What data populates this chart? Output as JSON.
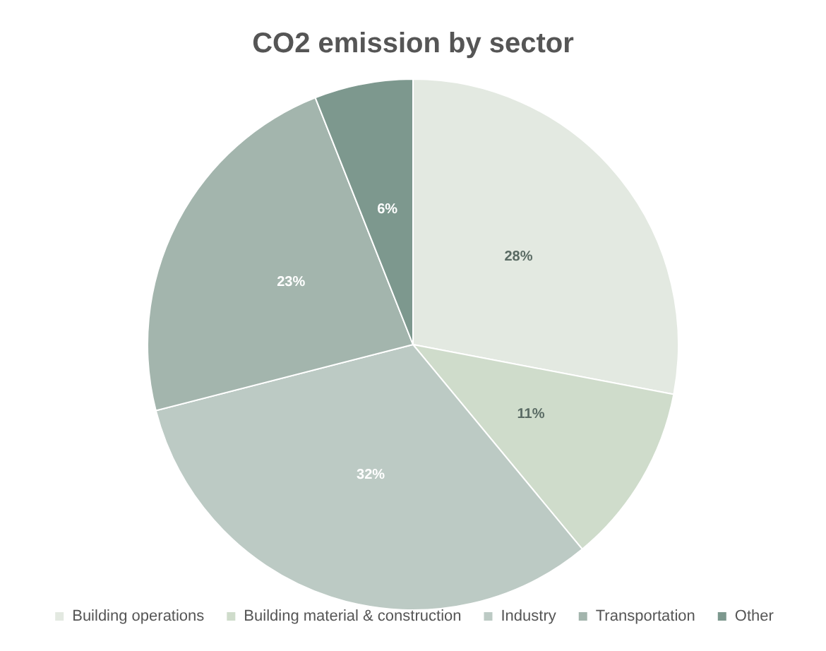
{
  "chart_data": {
    "type": "pie",
    "title": "CO2 emission by sector",
    "categories": [
      "Building operations",
      "Building material & construction",
      "Industry",
      "Transportation",
      "Other"
    ],
    "values": [
      28,
      11,
      32,
      23,
      6
    ],
    "colors": [
      "#e3e9e1",
      "#cfdccb",
      "#bccac4",
      "#a3b5ad",
      "#7d988e"
    ],
    "value_labels": [
      "28%",
      "11%",
      "32%",
      "23%",
      "6%"
    ],
    "legend": "bottom"
  }
}
